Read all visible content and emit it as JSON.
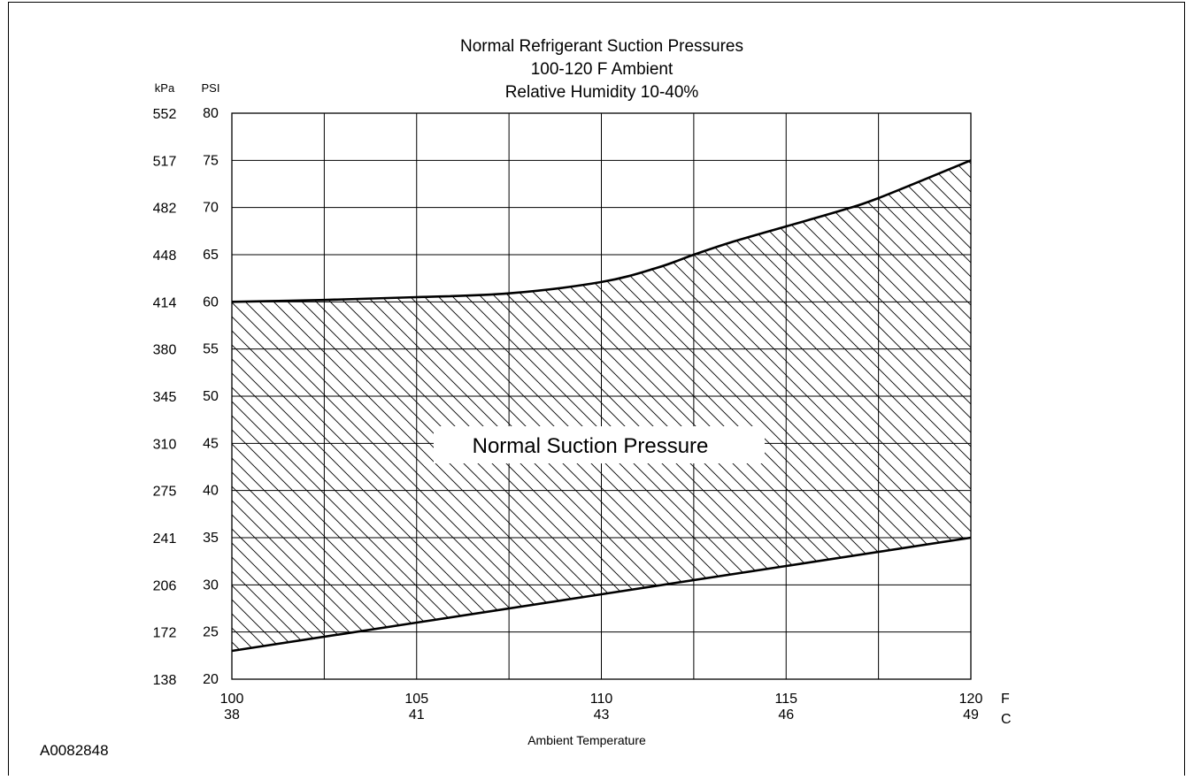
{
  "chart_data": {
    "type": "area",
    "title": [
      "Normal Refrigerant Suction Pressures",
      "100-120 F Ambient",
      "Relative Humidity 10-40%"
    ],
    "xlabel": "Ambient Temperature",
    "x_unit_f": "F",
    "x_unit_c": "C",
    "y_unit_kpa": "kPa",
    "y_unit_psi": "PSI",
    "xlim": [
      100,
      120
    ],
    "ylim": [
      20,
      80
    ],
    "x_ticks": [
      {
        "f": "100",
        "c": "38",
        "value": 100
      },
      {
        "f": "105",
        "c": "41",
        "value": 105
      },
      {
        "f": "110",
        "c": "43",
        "value": 110
      },
      {
        "f": "115",
        "c": "46",
        "value": 115
      },
      {
        "f": "120",
        "c": "49",
        "value": 120
      }
    ],
    "x_gridlines": [
      102.5,
      105,
      107.5,
      110,
      112.5,
      115,
      117.5,
      120
    ],
    "y_ticks": [
      {
        "psi": "80",
        "kpa": "552",
        "value": 80
      },
      {
        "psi": "75",
        "kpa": "517",
        "value": 75
      },
      {
        "psi": "70",
        "kpa": "482",
        "value": 70
      },
      {
        "psi": "65",
        "kpa": "448",
        "value": 65
      },
      {
        "psi": "60",
        "kpa": "414",
        "value": 60
      },
      {
        "psi": "55",
        "kpa": "380",
        "value": 55
      },
      {
        "psi": "50",
        "kpa": "345",
        "value": 50
      },
      {
        "psi": "45",
        "kpa": "310",
        "value": 45
      },
      {
        "psi": "40",
        "kpa": "275",
        "value": 40
      },
      {
        "psi": "35",
        "kpa": "241",
        "value": 35
      },
      {
        "psi": "30",
        "kpa": "206",
        "value": 30
      },
      {
        "psi": "25",
        "kpa": "172",
        "value": 25
      },
      {
        "psi": "20",
        "kpa": "138",
        "value": 20
      }
    ],
    "series": [
      {
        "x": [
          100,
          102.5,
          105,
          107.5,
          110,
          111.5,
          112.5,
          113.5,
          115,
          116.5,
          117.5,
          120
        ],
        "y": [
          60,
          60.2,
          60.5,
          60.9,
          62.1,
          63.6,
          65.0,
          66.3,
          68.0,
          69.7,
          71.0,
          75.0
        ]
      },
      {
        "x": [
          100,
          105,
          110,
          115,
          120
        ],
        "y": [
          23,
          26,
          29,
          32,
          35
        ]
      }
    ],
    "region_label": "Normal Suction Pressure",
    "grid": true,
    "legend": "none"
  },
  "figure_id": "A0082848"
}
